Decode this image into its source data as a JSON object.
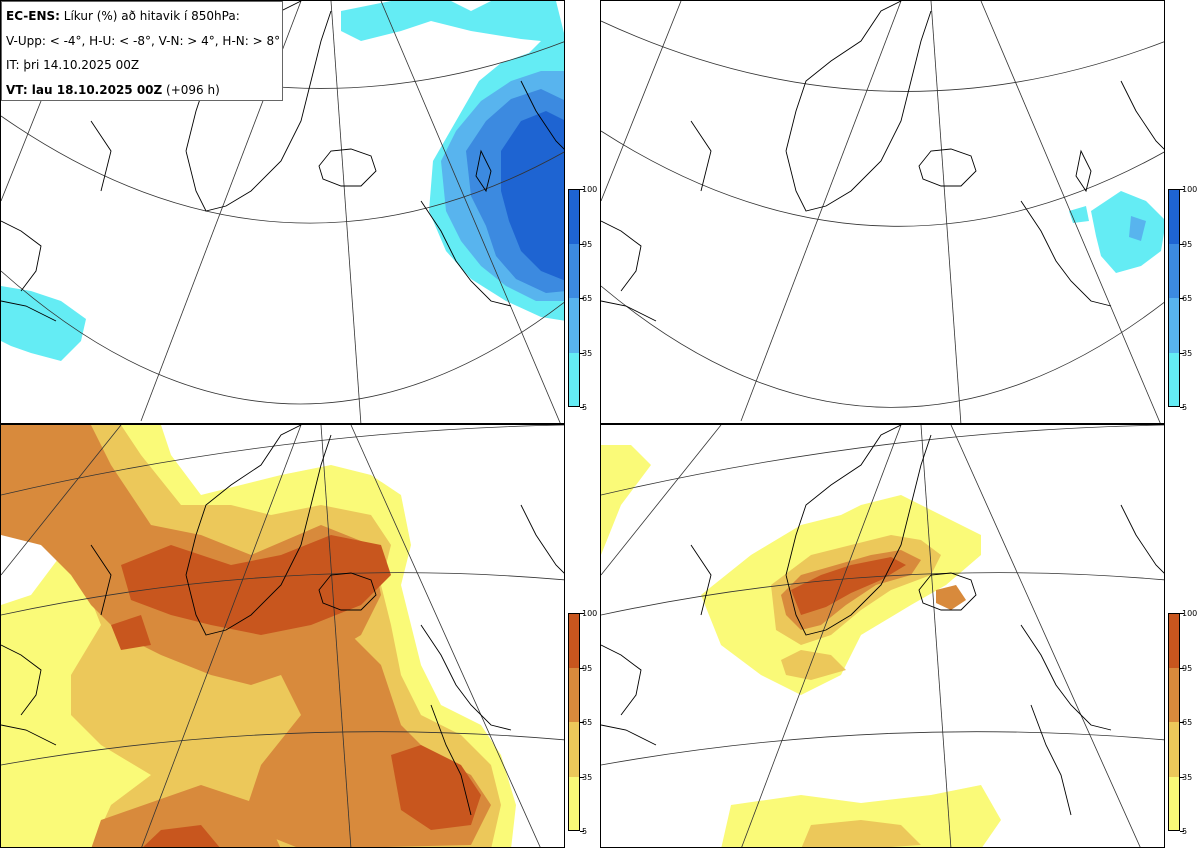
{
  "header": {
    "model": "EC-ENS:",
    "title": " Líkur (%) að hitavik í 850hPa:",
    "classes": "V-Upp: < -4°, H-U: < -8°, V-N: > 4°, H-N: > 8°",
    "init_time": "IT: þri 14.10.2025 00Z",
    "valid_prefix": "VT: lau 18.10.2025 00Z",
    "valid_suffix": " (+096 h)"
  },
  "panels": [
    {
      "id": "cold-4",
      "palette": "blue"
    },
    {
      "id": "cold-8",
      "palette": "blue"
    },
    {
      "id": "warm-4",
      "palette": "orange"
    },
    {
      "id": "warm-8",
      "palette": "orange"
    }
  ],
  "colorbar": {
    "tick_labels": [
      "100",
      "95",
      "65",
      "35",
      "5"
    ],
    "blue": [
      "#1e64d2",
      "#3c8ae0",
      "#58b4ee",
      "#64ecf4"
    ],
    "orange": [
      "#c8561e",
      "#d88a3c",
      "#ecc85a",
      "#fafa78"
    ]
  }
}
